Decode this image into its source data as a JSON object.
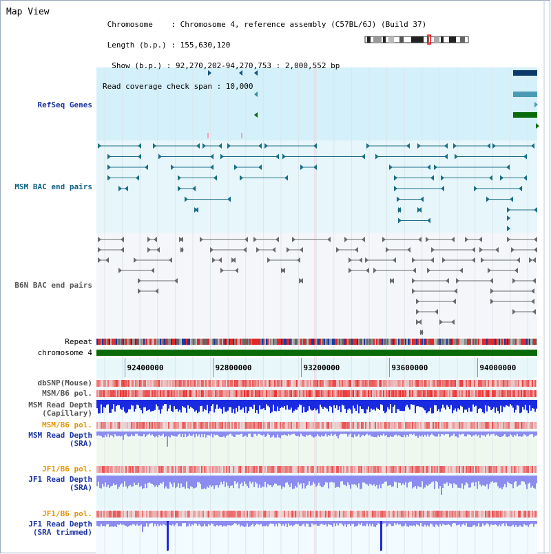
{
  "title": "Map View",
  "header": {
    "line1": " Chromosome    : Chromosome 4, reference assembly (C57BL/6J) (Build 37)",
    "line2": " Length (b.p.) : 155,630,120",
    "line3": "  Show (b.p.) : 92,270,202-94,270,753 : 2,000,552 bp",
    "line4": "Read coverage check span : 10,000"
  },
  "tracks": {
    "refseq": "RefSeq Genes",
    "msm_bac": "MSM BAC end pairs",
    "b6n_bac": "B6N BAC end pairs",
    "repeat": "Repeat",
    "chromosome": "chromosome 4",
    "dbsnp": "dbSNP(Mouse)",
    "msm_b6_pol_1": "MSM/B6 pol.",
    "msm_read_depth_cap_1": "MSM Read Depth",
    "msm_read_depth_cap_2": "(Capillary)",
    "msm_b6_pol_2": "MSM/B6 pol.",
    "msm_read_depth_sra_1": "MSM Read Depth",
    "msm_read_depth_sra_2": "(SRA)",
    "jf1_b6_pol_1": "JF1/B6 pol.",
    "jf1_read_depth_1": "JF1 Read Depth",
    "jf1_read_depth_2": "(SRA)",
    "jf1_b6_pol_2": "JF1/B6 pol.",
    "jf1_read_depth_trim_1": "JF1 Read Depth",
    "jf1_read_depth_trim_2": "(SRA trimmed)"
  },
  "axis": {
    "ticks": [
      "92400000",
      "92800000",
      "93200000",
      "93600000",
      "94000000"
    ],
    "tick_values": [
      92400000,
      92800000,
      93200000,
      93600000,
      94000000
    ],
    "start": 92270202,
    "end": 94270753
  },
  "colors": {
    "refseq_bg": "#d4f0fa",
    "bac_bg": "#e6f6fa",
    "b6n_bg": "#f4f6fa",
    "chrom": "#0a6a0a",
    "axis_bg": "#e8f8fa",
    "snp_low": "#f8d0d0",
    "snp_high": "#e83a3a",
    "depth_blue": "#1a2ae0",
    "depth_light": "#8c8cf0",
    "panel_green": "#eef8ee",
    "panel_cyan": "#e8f8fa"
  }
}
